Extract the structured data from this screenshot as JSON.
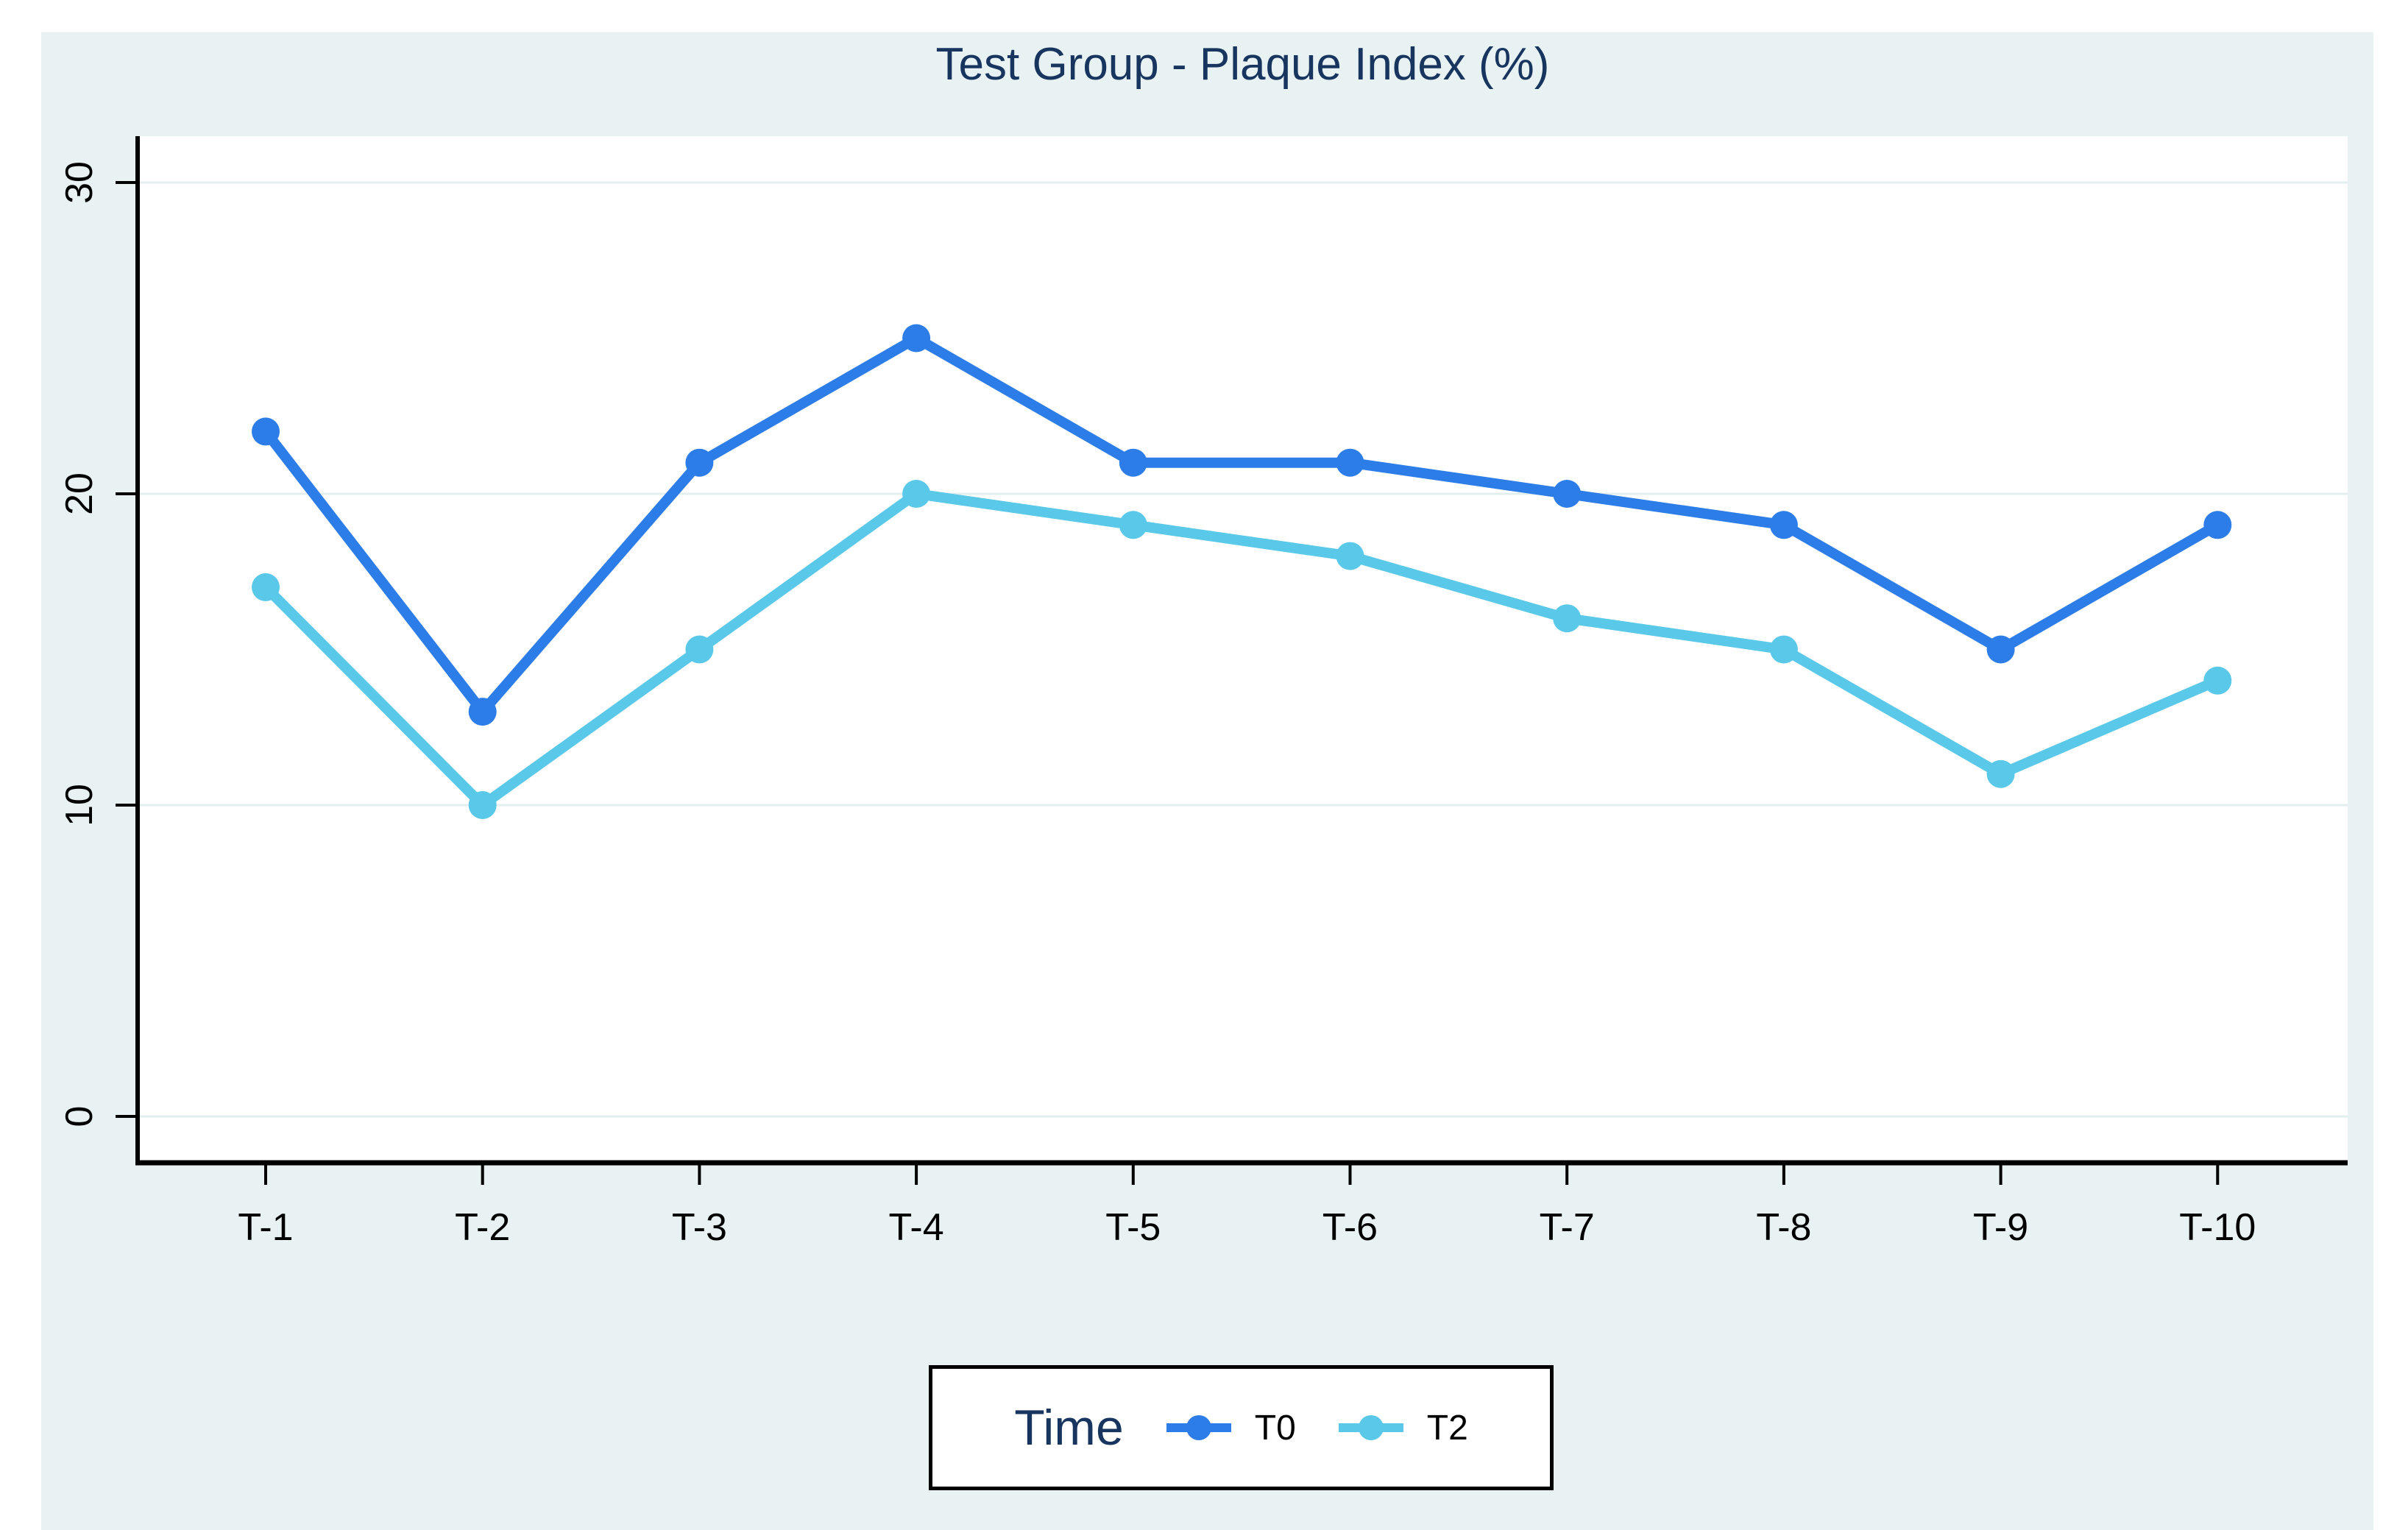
{
  "chart_data": {
    "type": "line",
    "title": "Test Group - Plaque Index (%)",
    "categories": [
      "T-1",
      "T-2",
      "T-3",
      "T-4",
      "T-5",
      "T-6",
      "T-7",
      "T-8",
      "T-9",
      "T-10"
    ],
    "series": [
      {
        "name": "T0",
        "color": "#2d7de9",
        "values": [
          22,
          13,
          21,
          25,
          21,
          21,
          20,
          19,
          15,
          19
        ]
      },
      {
        "name": "T2",
        "color": "#5ac8e8",
        "values": [
          17,
          10,
          15,
          20,
          19,
          18,
          16,
          15,
          11,
          14
        ]
      }
    ],
    "y_ticks": [
      0,
      10,
      20,
      30
    ],
    "ylim": [
      -1.5,
      31.5
    ],
    "xlabel": "",
    "ylabel": "",
    "grid": true,
    "legend": {
      "title": "Time",
      "position": "bottom"
    }
  },
  "colors": {
    "canvas_background": "#e8f2f3",
    "plot_background": "#ffffff",
    "gridline": "#e3efef",
    "axis": "#000000",
    "title_text": "#17355e",
    "tick_text": "#000000"
  }
}
